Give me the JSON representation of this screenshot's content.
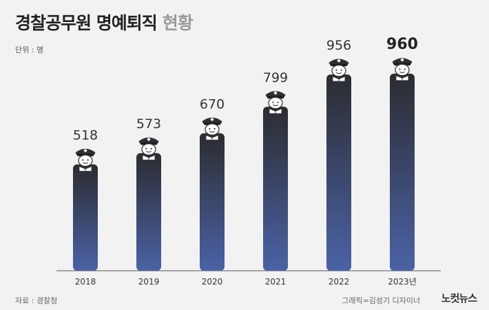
{
  "title": "경찰공무원 명예퇴직",
  "title_suffix": "현황",
  "unit_label": "단위 : 명",
  "source": "자료 : 경찰청",
  "credit": "그래픽=김성기 디자이너",
  "logo": "노컷뉴스",
  "colors": {
    "bar_top": "#2c2c30",
    "bar_bottom": "#4a62a6",
    "baseline": "#555555",
    "highlight_value": "#222222",
    "value": "#333333"
  },
  "chart_data": {
    "type": "bar",
    "title": "경찰공무원 명예퇴직 현황",
    "categories": [
      "2018",
      "2019",
      "2020",
      "2021",
      "2022",
      "2023년"
    ],
    "values": [
      518,
      573,
      670,
      799,
      956,
      960
    ],
    "ylabel": "",
    "unit": "명",
    "ylim": [
      0,
      1000
    ],
    "grid": false,
    "legend": "none",
    "highlight_index": 5
  }
}
